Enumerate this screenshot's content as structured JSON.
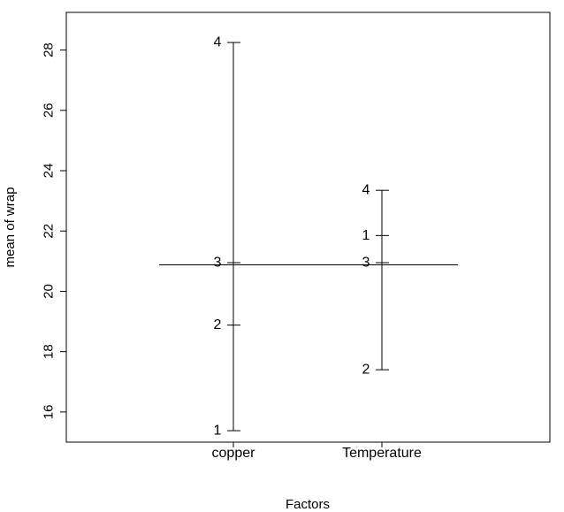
{
  "chart_data": {
    "type": "design_plot",
    "title": "",
    "xlabel": "Factors",
    "ylabel": "mean of wrap",
    "ylim": [
      15.0,
      28.75
    ],
    "yticks": [
      "16",
      "18",
      "20",
      "22",
      "24",
      "26",
      "28"
    ],
    "grand_mean": 20.88,
    "factors": [
      {
        "name": "copper",
        "levels": [
          {
            "label": "4",
            "value": 28.25
          },
          {
            "label": "3",
            "value": 20.95
          },
          {
            "label": "2",
            "value": 18.88
          },
          {
            "label": "1",
            "value": 15.38
          }
        ]
      },
      {
        "name": "Temperature",
        "levels": [
          {
            "label": "4",
            "value": 23.35
          },
          {
            "label": "1",
            "value": 21.85
          },
          {
            "label": "3",
            "value": 20.95
          },
          {
            "label": "2",
            "value": 17.4
          }
        ]
      }
    ]
  }
}
